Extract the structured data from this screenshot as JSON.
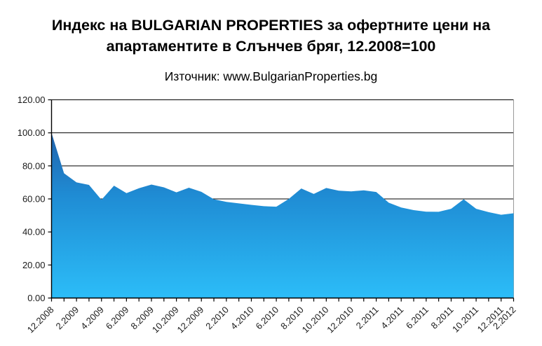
{
  "header": {
    "title_line1": "Индекс на BULGARIAN PROPERTIES за офертните цени на",
    "title_line2": "апартаментите в Слънчев бряг, 12.2008=100",
    "source": "Източник: www.BulgarianProperties.bg"
  },
  "chart_data": {
    "type": "area",
    "title": "Индекс на BULGARIAN PROPERTIES за офертните цени на апартаментите в Слънчев бряг, 12.2008=100",
    "subtitle": "Източник: www.BulgarianProperties.bg",
    "base_note": "12.2008=100",
    "n_points": 38,
    "values": [
      100.0,
      75.5,
      70.0,
      68.5,
      59.5,
      68.0,
      63.5,
      66.5,
      68.7,
      67.0,
      64.0,
      66.8,
      64.3,
      59.8,
      58.2,
      57.3,
      56.4,
      55.6,
      55.3,
      60.0,
      66.3,
      63.0,
      66.6,
      65.0,
      64.6,
      65.2,
      64.2,
      57.7,
      54.8,
      53.2,
      52.3,
      52.2,
      54.0,
      59.8,
      54.0,
      52.0,
      50.4,
      51.3
    ],
    "x_tick_labels": [
      "12.2008",
      "2.2009",
      "4.2009",
      "6.2009",
      "8.2009",
      "10.2009",
      "12.2009",
      "2.2010",
      "4.2010",
      "6.2010",
      "8.2010",
      "10.2010",
      "12.2010",
      "2.2011",
      "4.2011",
      "6.2011",
      "8.2011",
      "10.2011",
      "12.2011",
      "2.2012"
    ],
    "x_tick_label_positions": [
      0,
      2,
      4,
      6,
      8,
      10,
      12,
      14,
      16,
      18,
      20,
      22,
      24,
      26,
      28,
      30,
      32,
      34,
      36,
      37
    ],
    "y_ticks": [
      0,
      20,
      40,
      60,
      80,
      100,
      120
    ],
    "y_tick_labels": [
      "0.00",
      "20.00",
      "40.00",
      "60.00",
      "80.00",
      "100.00",
      "120.00"
    ],
    "ylim": [
      0,
      120
    ],
    "grid": "horizontal-black-lines",
    "legend": "none",
    "x_label_rotation_deg": 45,
    "colors": {
      "area_top": "#2263ac",
      "area_mid": "#1f8cd4",
      "area_bottom": "#2cbdf8",
      "gridline": "#000000",
      "axis": "#000000",
      "plot_right_border": "#9a9a9a",
      "label": "#1a1a1a"
    }
  }
}
